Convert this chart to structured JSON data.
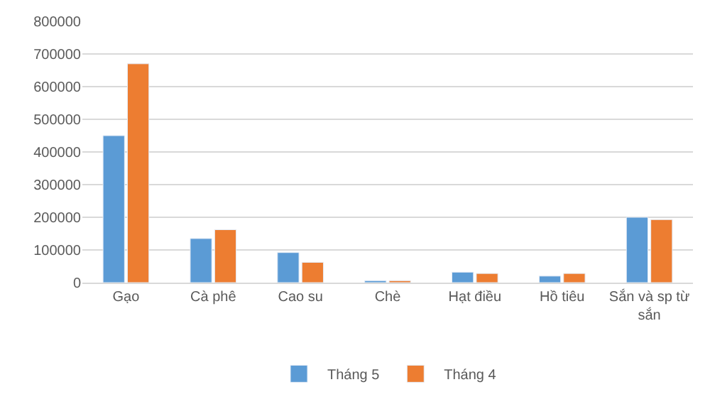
{
  "chart_data": {
    "type": "bar",
    "categories": [
      "Gạo",
      "Cà phê",
      "Cao su",
      "Chè",
      "Hạt điều",
      "Hồ tiêu",
      "Sắn và sp từ sắn"
    ],
    "series": [
      {
        "name": "Tháng 5",
        "color": "#5b9bd5",
        "values": [
          450000,
          135000,
          92000,
          6000,
          32000,
          20000,
          200000
        ]
      },
      {
        "name": "Tháng 4",
        "color": "#ed7d31",
        "values": [
          670000,
          162000,
          62000,
          6000,
          28000,
          28000,
          193000
        ]
      }
    ],
    "ylim": [
      0,
      800000
    ],
    "yticks": [
      0,
      100000,
      200000,
      300000,
      400000,
      500000,
      600000,
      700000,
      800000
    ],
    "grid": "y",
    "legend": "bottom"
  }
}
